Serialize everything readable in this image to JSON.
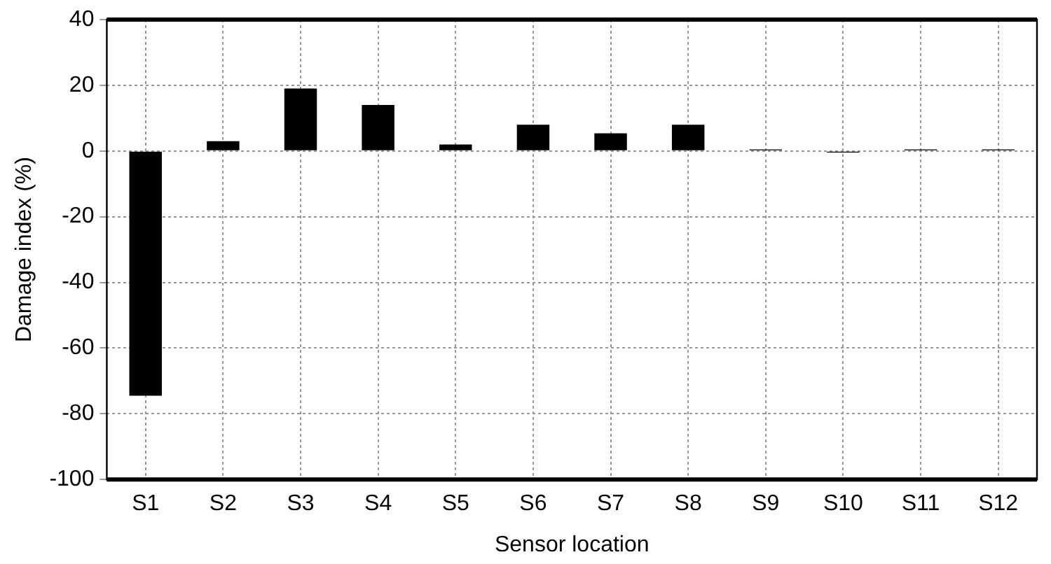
{
  "chart_data": {
    "type": "bar",
    "xlabel": "Sensor location",
    "ylabel": "Damage index (%)",
    "categories": [
      "S1",
      "S2",
      "S3",
      "S4",
      "S5",
      "S6",
      "S7",
      "S8",
      "S9",
      "S10",
      "S11",
      "S12"
    ],
    "values": [
      -74.5,
      3,
      19,
      14,
      2,
      8,
      5.4,
      8,
      0.5,
      -0.5,
      0.5,
      0.5
    ],
    "color": "#000000",
    "ylim": [
      -100,
      40
    ],
    "yticks": [
      -100,
      -80,
      -60,
      -40,
      -20,
      0,
      20,
      40
    ],
    "grid": true
  }
}
